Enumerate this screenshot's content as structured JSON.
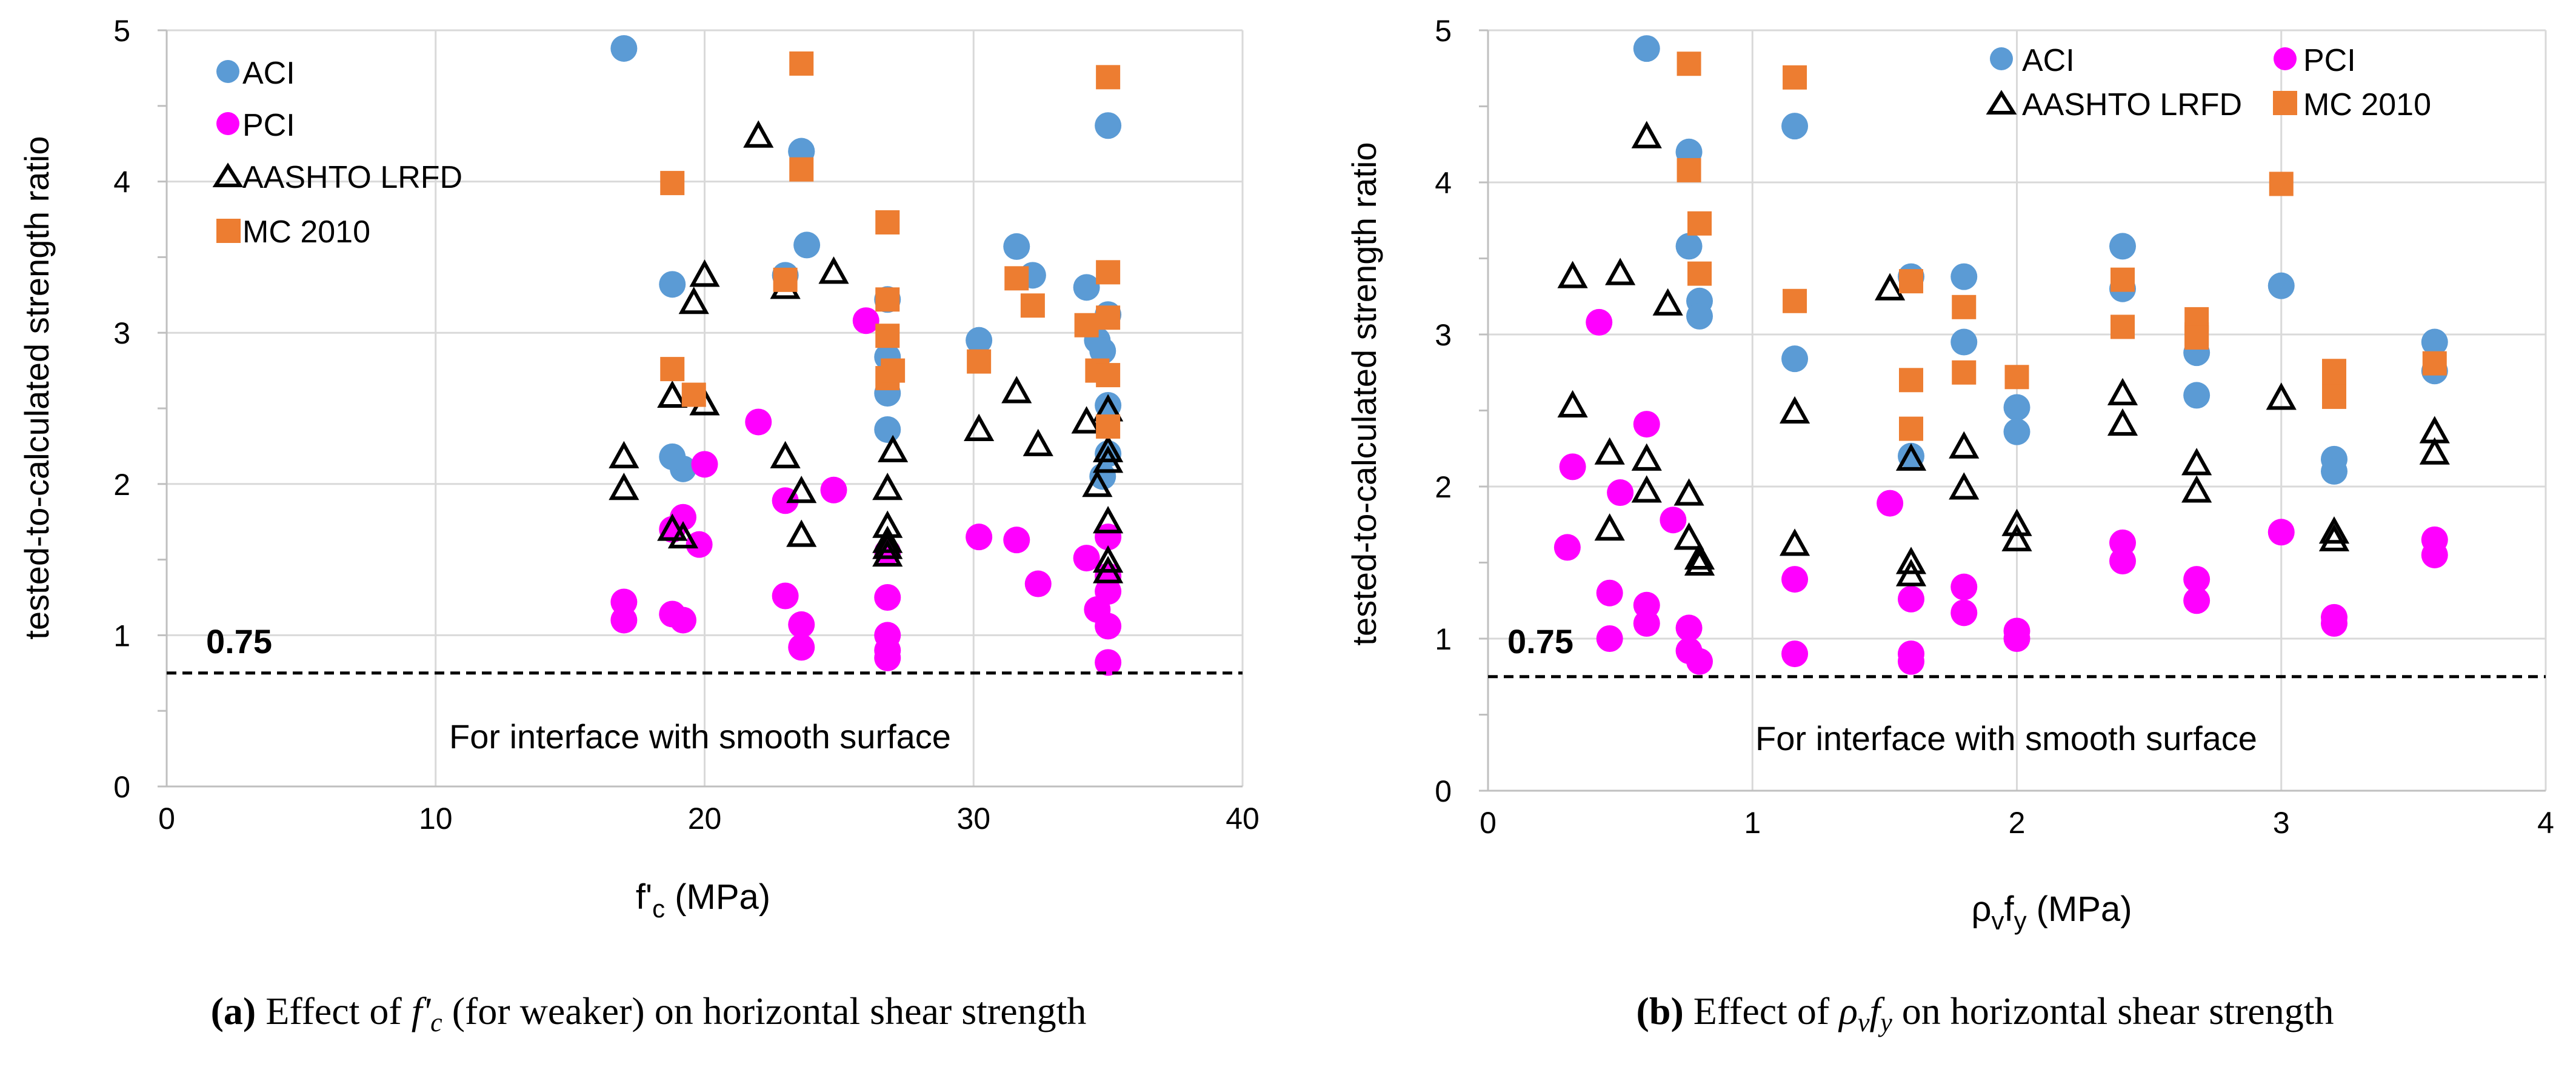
{
  "colors": {
    "aci": "#5B9BD5",
    "pci": "#FF00FF",
    "aashto": "#000000",
    "mc2010": "#ED7D31",
    "grid": "#D9D9D9",
    "axis": "#BFBFBF",
    "text": "#000000"
  },
  "series_names": {
    "aci": "ACI",
    "pci": "PCI",
    "aashto": "AASHTO LRFD",
    "mc2010": "MC 2010"
  },
  "threshold_label": "0.75",
  "note": "For interface with smooth surface",
  "ylabel": "tested-to-calculated strength ratio",
  "chart_data": [
    {
      "type": "scatter",
      "title": "",
      "xlabel": "f'c (MPa)",
      "xlabel_main": "f'",
      "xlabel_sub": "c",
      "xlabel_rest": " (MPa)",
      "ylabel": "tested-to-calculated strength ratio",
      "xlim": [
        0,
        40
      ],
      "ylim": [
        0,
        5
      ],
      "xticks": [
        0,
        10,
        20,
        30,
        40
      ],
      "yticks": [
        0,
        1,
        2,
        3,
        4,
        5
      ],
      "grid": true,
      "legend": "top-left",
      "threshold": 0.75,
      "caption_bold": "(a)",
      "caption": "Effect of f'c (for weaker) on horizontal shear strength",
      "caption_pre": "Effect of ",
      "caption_sym": "f'",
      "caption_sub": "c",
      "caption_post": " (for weaker) on horizontal shear strength",
      "series": [
        {
          "name": "ACI",
          "key": "aci",
          "marker": "circle",
          "x": [
            17,
            18.8,
            19.2,
            18.8,
            23.0,
            23.6,
            23.8,
            23.6,
            26.8,
            26.8,
            26.8,
            26.8,
            30.2,
            31.6,
            32.2,
            34.2,
            34.6,
            34.8,
            35.0,
            35.0,
            35.0,
            35.0,
            34.8
          ],
          "y": [
            4.88,
            3.32,
            2.1,
            2.18,
            3.38,
            4.2,
            3.58,
            4.2,
            3.22,
            2.84,
            2.6,
            2.36,
            2.95,
            3.57,
            3.38,
            3.3,
            2.95,
            2.88,
            3.12,
            2.52,
            2.2,
            4.37,
            2.05
          ]
        },
        {
          "name": "PCI",
          "key": "pci",
          "marker": "circle",
          "x": [
            17,
            17,
            18.8,
            19.2,
            19.2,
            19.8,
            20.0,
            18.8,
            22.0,
            23.0,
            23.0,
            23.6,
            23.6,
            24.8,
            26.0,
            26.8,
            26.8,
            26.8,
            26.8,
            26.8,
            30.2,
            31.6,
            32.4,
            34.2,
            34.6,
            35.0,
            35.0,
            35.0,
            35.0,
            35.0
          ],
          "y": [
            1.22,
            1.1,
            1.14,
            1.1,
            1.78,
            1.6,
            2.13,
            1.7,
            2.41,
            1.89,
            1.26,
            1.07,
            0.92,
            1.96,
            3.08,
            1.55,
            1.25,
            1.0,
            0.9,
            0.85,
            1.65,
            1.63,
            1.34,
            1.51,
            1.17,
            1.39,
            1.29,
            1.06,
            0.82,
            1.65
          ]
        },
        {
          "name": "AASHTO LRFD",
          "key": "aashto",
          "marker": "triangle",
          "x": [
            17,
            17,
            18.8,
            18.8,
            19.2,
            19.6,
            20.0,
            20.0,
            22.0,
            23.0,
            23.0,
            23.6,
            23.6,
            24.8,
            26.8,
            26.8,
            26.8,
            26.8,
            26.8,
            27.0,
            30.2,
            31.6,
            32.4,
            34.2,
            34.6,
            35.0,
            35.0,
            35.0,
            35.0,
            35.0,
            35.0
          ],
          "y": [
            2.18,
            1.97,
            2.58,
            1.7,
            1.65,
            3.2,
            3.38,
            2.53,
            4.3,
            3.3,
            2.18,
            1.95,
            1.66,
            3.4,
            1.97,
            1.72,
            1.62,
            1.58,
            1.53,
            2.22,
            2.36,
            2.61,
            2.26,
            2.41,
            1.99,
            2.49,
            2.22,
            2.15,
            1.75,
            1.49,
            1.42
          ]
        },
        {
          "name": "MC 2010",
          "key": "mc2010",
          "marker": "square",
          "x": [
            18.8,
            18.8,
            19.6,
            23.0,
            23.6,
            23.6,
            26.8,
            26.8,
            26.8,
            26.8,
            27.0,
            30.2,
            31.6,
            32.2,
            34.2,
            34.6,
            35.0,
            35.0,
            35.0,
            35.0,
            35.0
          ],
          "y": [
            3.99,
            2.76,
            2.59,
            3.35,
            4.08,
            4.78,
            3.73,
            3.22,
            2.98,
            2.7,
            2.75,
            2.81,
            3.36,
            3.18,
            3.05,
            2.75,
            4.69,
            3.4,
            3.1,
            2.72,
            2.38
          ]
        }
      ]
    },
    {
      "type": "scatter",
      "title": "",
      "xlabel": "ρvfy (MPa)",
      "xlabel_main": "ρ",
      "xlabel_sub": "v",
      "xlabel_main2": "f",
      "xlabel_sub2": "y",
      "xlabel_rest": " (MPa)",
      "ylabel": "tested-to-calculated strength ratio",
      "xlim": [
        0,
        4
      ],
      "ylim": [
        0,
        5
      ],
      "xticks": [
        0,
        1,
        2,
        3,
        4
      ],
      "yticks": [
        0,
        1,
        2,
        3,
        4,
        5
      ],
      "grid": true,
      "legend": "top-right",
      "threshold": 0.75,
      "caption_bold": "(b)",
      "caption": "Effect of ρvfy on horizontal shear strength",
      "caption_pre": "Effect of ",
      "caption_sym1": "ρ",
      "caption_sub1": "v",
      "caption_sym2": "f",
      "caption_sub2": "y",
      "caption_post": " on horizontal shear strength",
      "series": [
        {
          "name": "ACI",
          "key": "aci",
          "marker": "circle",
          "x": [
            0.6,
            0.76,
            0.76,
            0.8,
            0.8,
            1.16,
            1.16,
            1.6,
            1.6,
            1.8,
            1.8,
            2.0,
            2.0,
            2.4,
            2.4,
            2.68,
            2.68,
            3.0,
            3.2,
            3.2,
            3.58,
            3.58
          ],
          "y": [
            4.88,
            4.2,
            3.58,
            3.22,
            3.12,
            4.37,
            2.84,
            3.38,
            2.2,
            3.38,
            2.95,
            2.52,
            2.36,
            3.58,
            3.3,
            2.88,
            2.6,
            3.32,
            2.18,
            2.1,
            2.95,
            2.76
          ]
        },
        {
          "name": "PCI",
          "key": "pci",
          "marker": "circle",
          "x": [
            0.3,
            0.32,
            0.42,
            0.46,
            0.46,
            0.5,
            0.6,
            0.6,
            0.6,
            0.7,
            0.76,
            0.76,
            0.8,
            1.16,
            1.16,
            1.52,
            1.6,
            1.6,
            1.6,
            1.8,
            1.8,
            2.0,
            2.0,
            2.4,
            2.4,
            2.68,
            2.68,
            3.0,
            3.2,
            3.2,
            3.58,
            3.58
          ],
          "y": [
            1.6,
            2.13,
            3.08,
            1.3,
            1.0,
            1.96,
            2.41,
            1.22,
            1.1,
            1.78,
            1.07,
            0.92,
            0.85,
            1.39,
            0.9,
            1.89,
            1.26,
            0.9,
            0.85,
            1.34,
            1.17,
            1.05,
            1.0,
            1.63,
            1.51,
            1.39,
            1.25,
            1.7,
            1.14,
            1.1,
            1.65,
            1.55
          ]
        },
        {
          "name": "AASHTO LRFD",
          "key": "aashto",
          "marker": "triangle",
          "x": [
            0.32,
            0.32,
            0.46,
            0.46,
            0.5,
            0.6,
            0.6,
            0.6,
            0.68,
            0.76,
            0.76,
            0.8,
            0.8,
            1.16,
            1.16,
            1.52,
            1.6,
            1.6,
            1.6,
            1.8,
            1.8,
            2.0,
            2.0,
            2.4,
            2.4,
            2.68,
            2.68,
            3.0,
            3.2,
            3.2,
            3.58,
            3.58
          ],
          "y": [
            3.38,
            2.53,
            2.22,
            1.72,
            3.4,
            4.3,
            2.18,
            1.97,
            3.2,
            1.95,
            1.66,
            1.53,
            1.49,
            2.49,
            1.62,
            3.3,
            2.18,
            1.5,
            1.42,
            2.26,
            1.99,
            1.75,
            1.65,
            2.61,
            2.41,
            2.15,
            1.97,
            2.58,
            1.7,
            1.65,
            2.36,
            2.22
          ]
        },
        {
          "name": "MC 2010",
          "key": "mc2010",
          "marker": "square",
          "x": [
            0.76,
            0.76,
            0.8,
            0.8,
            1.16,
            1.16,
            1.6,
            1.6,
            1.6,
            1.8,
            1.8,
            2.0,
            2.4,
            2.4,
            2.68,
            2.68,
            2.68,
            3.0,
            3.2,
            3.2,
            3.2,
            3.58
          ],
          "y": [
            4.78,
            4.08,
            3.73,
            3.4,
            4.69,
            3.22,
            3.35,
            2.7,
            2.38,
            3.18,
            2.75,
            2.72,
            3.36,
            3.05,
            3.1,
            3.0,
            2.98,
            3.99,
            2.76,
            2.7,
            2.59,
            2.81
          ]
        }
      ]
    }
  ]
}
